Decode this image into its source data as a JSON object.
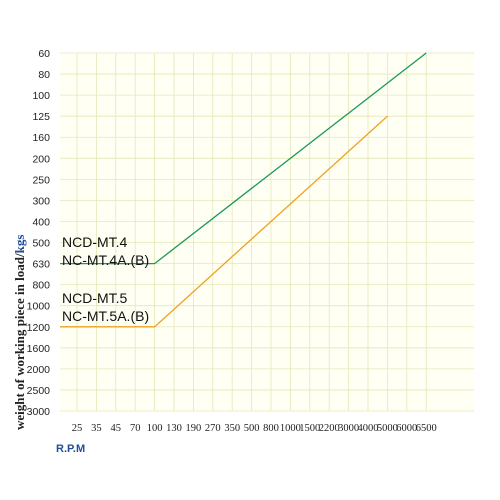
{
  "chart_data": {
    "type": "line",
    "ylabel": "weight of working piece in load/",
    "ylabel_unit": "kgs",
    "xlabel": "R.P.M",
    "x_ticks": [
      "25",
      "35",
      "45",
      "70",
      "100",
      "130",
      "190",
      "270",
      "350",
      "500",
      "800",
      "1000",
      "1500",
      "2200",
      "3000",
      "4000",
      "5000",
      "6000",
      "6500"
    ],
    "y_ticks": [
      "60",
      "80",
      "100",
      "125",
      "160",
      "200",
      "250",
      "300",
      "400",
      "500",
      "630",
      "800",
      "1000",
      "1200",
      "1600",
      "2000",
      "2500",
      "3000"
    ],
    "y_reversed": true,
    "grid": true,
    "series": [
      {
        "name_lines": [
          "NCD-MT.4",
          "NC-MT.4A.(B)"
        ],
        "color": "#1a9a5c",
        "points": [
          {
            "x": 0,
            "y": "630"
          },
          {
            "x": "100",
            "y": "630"
          },
          {
            "x": "6500",
            "y": "60"
          }
        ]
      },
      {
        "name_lines": [
          "NCD-MT.5",
          "NC-MT.5A.(B)"
        ],
        "color": "#f0a020",
        "points": [
          {
            "x": 0,
            "y": "1200"
          },
          {
            "x": "100",
            "y": "1200"
          },
          {
            "x": "5000",
            "y": "125"
          }
        ]
      }
    ]
  }
}
